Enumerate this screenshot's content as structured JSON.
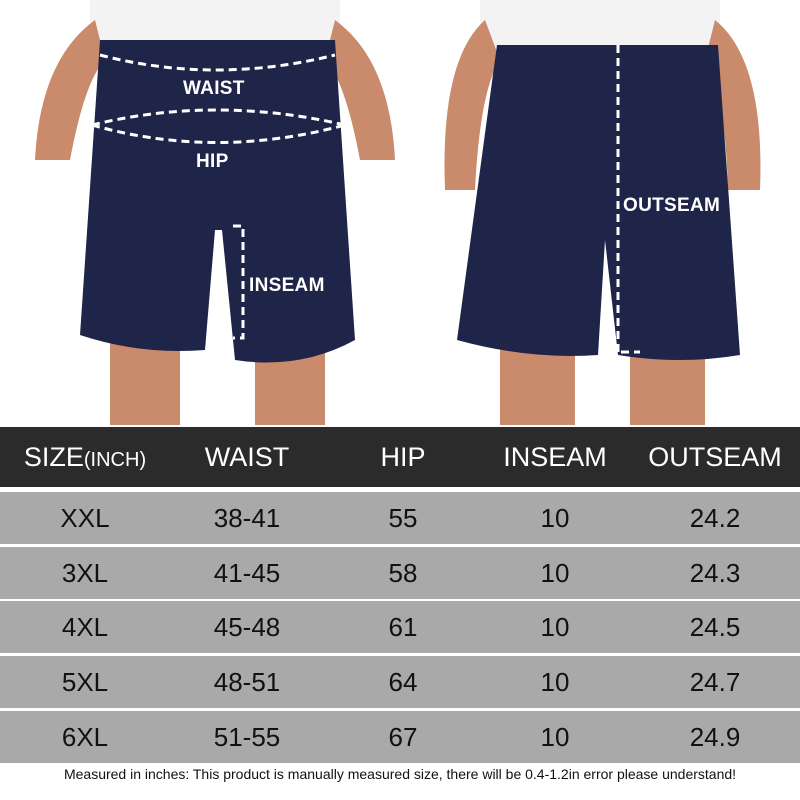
{
  "photo": {
    "labels": {
      "waist": "WAIST",
      "hip": "HIP",
      "inseam": "INSEAM",
      "outseam": "OUTSEAM"
    },
    "colors": {
      "shorts": "#1f2548",
      "skin": "#c98b6b",
      "shirt": "#f3f3f3"
    }
  },
  "table": {
    "headers": {
      "size": "SIZE",
      "size_unit": "(INCH)",
      "waist": "WAIST",
      "hip": "HIP",
      "inseam": "INSEAM",
      "outseam": "OUTSEAM"
    },
    "rows": [
      {
        "size": "XXL",
        "waist": "38-41",
        "hip": "55",
        "inseam": "10",
        "outseam": "24.2"
      },
      {
        "size": "3XL",
        "waist": "41-45",
        "hip": "58",
        "inseam": "10",
        "outseam": "24.3"
      },
      {
        "size": "4XL",
        "waist": "45-48",
        "hip": "61",
        "inseam": "10",
        "outseam": "24.5"
      },
      {
        "size": "5XL",
        "waist": "48-51",
        "hip": "64",
        "inseam": "10",
        "outseam": "24.7"
      },
      {
        "size": "6XL",
        "waist": "51-55",
        "hip": "67",
        "inseam": "10",
        "outseam": "24.9"
      }
    ],
    "colors": {
      "header": "#2b2b2b",
      "row": "#a9a9a9"
    }
  },
  "note": "Measured in inches: This product is manually measured size, there will be 0.4-1.2in error please understand!"
}
